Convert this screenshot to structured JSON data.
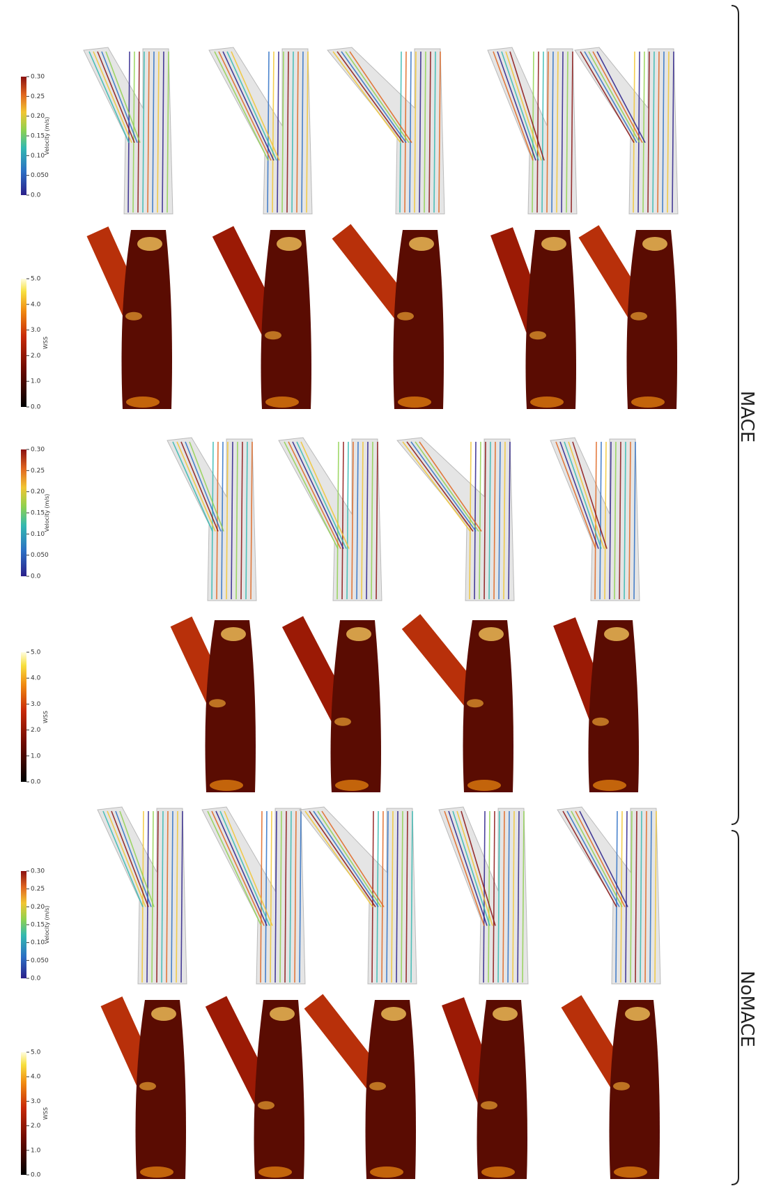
{
  "panels": [
    {
      "colorbar": {
        "title": "Velocity (m/s)",
        "ticks": [
          "0.30",
          "0.25",
          "0.20",
          "0.15",
          "0.10",
          "0.050",
          "0.0"
        ]
      }
    },
    {
      "colorbar": {
        "title": "WSS",
        "ticks": [
          "5.0",
          "4.0",
          "3.0",
          "2.0",
          "1.0",
          "0.0"
        ]
      }
    },
    {
      "colorbar": {
        "title": "Velocity (m/s)",
        "ticks": [
          "0.30",
          "0.25",
          "0.20",
          "0.15",
          "0.10",
          "0.050",
          "0.0"
        ]
      }
    },
    {
      "colorbar": {
        "title": "WSS",
        "ticks": [
          "5.0",
          "4.0",
          "3.0",
          "2.0",
          "1.0",
          "0.0"
        ]
      }
    },
    {
      "colorbar": {
        "title": "Velocity (m/s)",
        "ticks": [
          "0.30",
          "0.25",
          "0.20",
          "0.15",
          "0.10",
          "0.050",
          "0.0"
        ]
      }
    },
    {
      "colorbar": {
        "title": "WSS",
        "ticks": [
          "5.0",
          "4.0",
          "3.0",
          "2.0",
          "1.0",
          "0.0"
        ]
      }
    }
  ],
  "groups": [
    {
      "label": "MACE"
    },
    {
      "label": "NoMACE"
    }
  ]
}
